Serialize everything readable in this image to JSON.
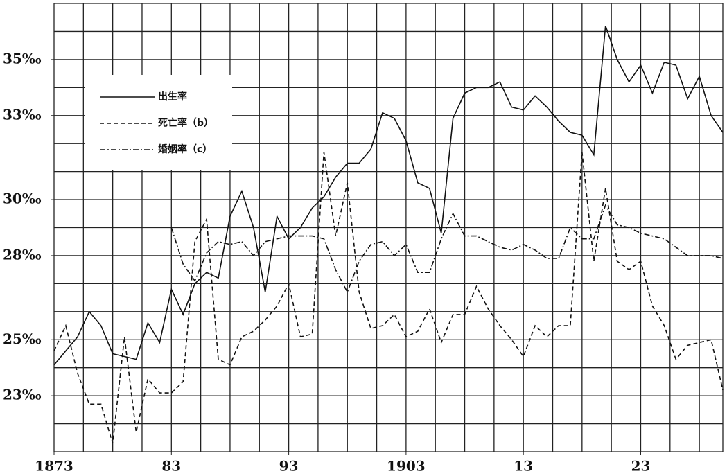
{
  "chart_data": {
    "type": "line",
    "x": [
      1873,
      1874,
      1875,
      1876,
      1877,
      1878,
      1879,
      1880,
      1881,
      1882,
      1883,
      1884,
      1885,
      1886,
      1887,
      1888,
      1889,
      1890,
      1891,
      1892,
      1893,
      1894,
      1895,
      1896,
      1897,
      1898,
      1899,
      1900,
      1901,
      1902,
      1903,
      1904,
      1905,
      1906,
      1907,
      1908,
      1909,
      1910,
      1911,
      1912,
      1913,
      1914,
      1915,
      1916,
      1917,
      1918,
      1919,
      1920,
      1921,
      1922,
      1923,
      1924,
      1925,
      1926,
      1927,
      1928,
      1929,
      1930
    ],
    "series": [
      {
        "name": "出生率",
        "color": "#111",
        "style": "solid",
        "values": [
          24.1,
          24.6,
          25.1,
          26.0,
          25.5,
          24.5,
          24.4,
          24.3,
          25.6,
          24.9,
          26.8,
          25.9,
          27.0,
          27.4,
          27.2,
          29.4,
          30.3,
          29.0,
          26.7,
          29.4,
          28.6,
          29.0,
          29.7,
          30.1,
          30.8,
          31.3,
          31.3,
          31.8,
          33.1,
          32.9,
          32.1,
          30.6,
          30.4,
          28.8,
          32.9,
          33.8,
          34.0,
          34.0,
          34.2,
          33.3,
          33.2,
          33.7,
          33.3,
          32.8,
          32.4,
          32.3,
          31.6,
          36.2,
          35.0,
          34.2,
          34.8,
          33.8,
          34.9,
          34.8,
          33.6,
          34.4,
          33.0,
          32.4
        ]
      },
      {
        "name": "死亡率（b）",
        "color": "#111",
        "style": "dashed",
        "values": [
          24.6,
          25.5,
          23.8,
          22.7,
          22.7,
          21.3,
          25.1,
          21.7,
          23.6,
          23.1,
          23.1,
          23.5,
          28.5,
          29.3,
          24.3,
          24.1,
          25.1,
          25.3,
          25.7,
          26.2,
          27.0,
          25.1,
          25.2,
          31.7,
          28.7,
          30.6,
          26.7,
          25.4,
          25.5,
          25.9,
          25.1,
          25.3,
          26.1,
          24.9,
          25.9,
          25.9,
          26.9,
          26.1,
          25.5,
          25.0,
          24.4,
          25.5,
          25.1,
          25.5,
          25.5,
          31.7,
          27.8,
          30.4,
          27.8,
          27.5,
          27.8,
          26.2,
          25.5,
          24.3,
          24.8,
          24.9,
          25.0,
          23.2
        ]
      },
      {
        "name": "婚姻率（c）",
        "color": "#111",
        "style": "dashdot",
        "values": [
          null,
          null,
          null,
          null,
          null,
          null,
          null,
          null,
          null,
          null,
          29.0,
          27.7,
          27.1,
          28.1,
          28.5,
          28.4,
          28.5,
          28.0,
          28.5,
          28.6,
          28.7,
          28.7,
          28.7,
          28.6,
          27.5,
          26.7,
          27.8,
          28.4,
          28.5,
          28.0,
          28.4,
          27.4,
          27.4,
          28.6,
          29.5,
          28.7,
          28.7,
          28.5,
          28.3,
          28.2,
          28.4,
          28.2,
          27.9,
          27.9,
          29.0,
          28.6,
          28.6,
          29.8,
          29.1,
          29.0,
          28.8,
          28.7,
          28.6,
          28.3,
          28.0,
          28.0,
          28.0,
          27.9
        ]
      }
    ],
    "xlim": [
      1873,
      1930
    ],
    "xticks": [
      1873,
      {
        "value": 1883,
        "label": "83"
      },
      {
        "value": 1893,
        "label": "93"
      },
      1903,
      {
        "value": 1913,
        "label": "13"
      },
      {
        "value": 1923,
        "label": "23"
      }
    ],
    "ylim": [
      21,
      37
    ],
    "yticks": [
      {
        "value": 23,
        "label": "23‰"
      },
      {
        "value": 25,
        "label": "25‰"
      },
      {
        "value": 28,
        "label": "28‰"
      },
      {
        "value": 30,
        "label": "30‰"
      },
      {
        "value": 33,
        "label": "33‰"
      },
      {
        "value": 35,
        "label": "35‰"
      }
    ],
    "xgrid": [
      1873,
      1875.5,
      1878,
      1880.5,
      1883,
      1885.5,
      1888,
      1890.5,
      1893,
      1895.5,
      1898,
      1900.5,
      1903,
      1905.5,
      1908,
      1910.5,
      1913,
      1915.5,
      1918,
      1920.5,
      1923,
      1925.5,
      1928,
      1930
    ],
    "ygrid": [
      21,
      22,
      23,
      24,
      25,
      26,
      27,
      28,
      29,
      30,
      31,
      32,
      33,
      34,
      35,
      36,
      37
    ],
    "grid": true,
    "legend": "upper left"
  }
}
